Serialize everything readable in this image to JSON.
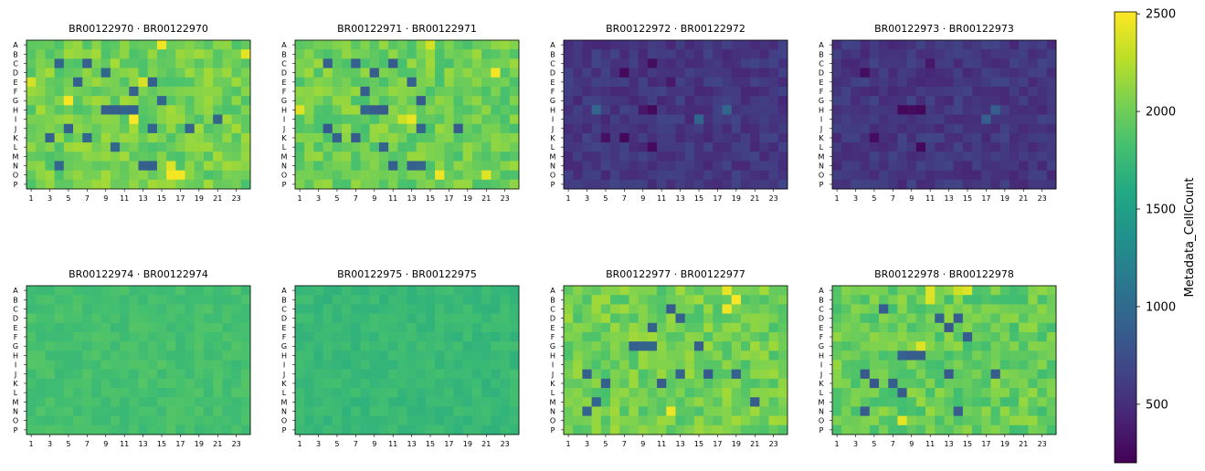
{
  "figure": {
    "colorbar": {
      "label": "Metadata_CellCount",
      "range": [
        200,
        2510
      ],
      "ticks": [
        500,
        1000,
        1500,
        2000,
        2500
      ],
      "tick_labels": [
        "500",
        "1000",
        "1500",
        "2000",
        "2500"
      ],
      "colormap": "viridis"
    }
  },
  "chart_data": {
    "type": "heatmap",
    "rows": [
      "A",
      "B",
      "C",
      "D",
      "E",
      "F",
      "G",
      "H",
      "I",
      "J",
      "K",
      "L",
      "M",
      "N",
      "O",
      "P"
    ],
    "columns": 24,
    "x_tick_labels": [
      "1",
      "3",
      "5",
      "7",
      "9",
      "11",
      "13",
      "15",
      "17",
      "19",
      "21",
      "23"
    ],
    "value_label": "Metadata_CellCount",
    "plates": [
      {
        "title": "BR00122970 · BR00122970",
        "base": 2020,
        "spread": 180,
        "seed": 11,
        "low_wells": [
          [
            2,
            3
          ],
          [
            2,
            6
          ],
          [
            3,
            8
          ],
          [
            4,
            5
          ],
          [
            4,
            12
          ],
          [
            4,
            13
          ],
          [
            5,
            11
          ],
          [
            6,
            14
          ],
          [
            7,
            8
          ],
          [
            7,
            9
          ],
          [
            7,
            10
          ],
          [
            7,
            11
          ],
          [
            8,
            20
          ],
          [
            9,
            4
          ],
          [
            9,
            13
          ],
          [
            9,
            17
          ],
          [
            10,
            2
          ],
          [
            10,
            6
          ],
          [
            11,
            9
          ],
          [
            13,
            3
          ],
          [
            13,
            12
          ],
          [
            13,
            13
          ]
        ],
        "high_wells": [
          [
            0,
            14
          ],
          [
            4,
            0
          ],
          [
            4,
            12
          ],
          [
            6,
            4
          ],
          [
            8,
            11
          ],
          [
            13,
            15
          ],
          [
            14,
            15
          ],
          [
            14,
            16
          ],
          [
            1,
            23
          ]
        ]
      },
      {
        "title": "BR00122971 · BR00122971",
        "base": 2000,
        "spread": 180,
        "seed": 23,
        "low_wells": [
          [
            2,
            3
          ],
          [
            2,
            6
          ],
          [
            2,
            10
          ],
          [
            3,
            8
          ],
          [
            4,
            12
          ],
          [
            5,
            7
          ],
          [
            6,
            13
          ],
          [
            7,
            7
          ],
          [
            7,
            8
          ],
          [
            7,
            9
          ],
          [
            9,
            3
          ],
          [
            9,
            13
          ],
          [
            9,
            17
          ],
          [
            10,
            4
          ],
          [
            10,
            6
          ],
          [
            11,
            9
          ],
          [
            13,
            10
          ],
          [
            13,
            12
          ],
          [
            13,
            13
          ]
        ],
        "high_wells": [
          [
            0,
            14
          ],
          [
            7,
            0
          ],
          [
            8,
            11
          ],
          [
            8,
            12
          ],
          [
            14,
            15
          ],
          [
            14,
            20
          ],
          [
            3,
            21
          ]
        ]
      },
      {
        "title": "BR00122972 · BR00122972",
        "base": 560,
        "spread": 110,
        "seed": 37,
        "low_wells": [
          [
            2,
            9
          ],
          [
            3,
            6
          ],
          [
            4,
            11
          ],
          [
            7,
            8
          ],
          [
            7,
            9
          ],
          [
            10,
            4
          ],
          [
            10,
            6
          ],
          [
            11,
            9
          ]
        ],
        "high_wells": [
          [
            7,
            3
          ],
          [
            8,
            14
          ],
          [
            7,
            17
          ]
        ]
      },
      {
        "title": "BR00122973 · BR00122973",
        "base": 560,
        "spread": 110,
        "seed": 41,
        "low_wells": [
          [
            2,
            10
          ],
          [
            3,
            3
          ],
          [
            7,
            7
          ],
          [
            7,
            8
          ],
          [
            7,
            9
          ],
          [
            10,
            4
          ],
          [
            11,
            9
          ]
        ],
        "high_wells": [
          [
            7,
            17
          ],
          [
            8,
            16
          ]
        ]
      },
      {
        "title": "BR00122974 · BR00122974",
        "base": 1820,
        "spread": 70,
        "seed": 53,
        "low_wells": [],
        "high_wells": []
      },
      {
        "title": "BR00122975 · BR00122975",
        "base": 1750,
        "spread": 70,
        "seed": 67,
        "low_wells": [],
        "high_wells": []
      },
      {
        "title": "BR00122977 · BR00122977",
        "base": 2010,
        "spread": 180,
        "seed": 71,
        "low_wells": [
          [
            2,
            11
          ],
          [
            3,
            12
          ],
          [
            4,
            9
          ],
          [
            6,
            14
          ],
          [
            6,
            7
          ],
          [
            6,
            8
          ],
          [
            6,
            9
          ],
          [
            9,
            2
          ],
          [
            9,
            12
          ],
          [
            9,
            15
          ],
          [
            9,
            18
          ],
          [
            10,
            4
          ],
          [
            10,
            10
          ],
          [
            12,
            3
          ],
          [
            13,
            2
          ],
          [
            12,
            20
          ]
        ],
        "high_wells": [
          [
            0,
            17
          ],
          [
            1,
            18
          ],
          [
            2,
            17
          ],
          [
            13,
            11
          ]
        ]
      },
      {
        "title": "BR00122978 · BR00122978",
        "base": 1970,
        "spread": 180,
        "seed": 83,
        "low_wells": [
          [
            2,
            5
          ],
          [
            3,
            11
          ],
          [
            3,
            13
          ],
          [
            4,
            12
          ],
          [
            5,
            14
          ],
          [
            7,
            7
          ],
          [
            7,
            8
          ],
          [
            7,
            9
          ],
          [
            9,
            3
          ],
          [
            9,
            12
          ],
          [
            9,
            17
          ],
          [
            10,
            4
          ],
          [
            10,
            6
          ],
          [
            11,
            7
          ],
          [
            13,
            3
          ],
          [
            13,
            13
          ]
        ],
        "high_wells": [
          [
            0,
            13
          ],
          [
            0,
            10
          ],
          [
            1,
            10
          ],
          [
            6,
            9
          ],
          [
            14,
            7
          ],
          [
            0,
            14
          ]
        ]
      }
    ]
  }
}
